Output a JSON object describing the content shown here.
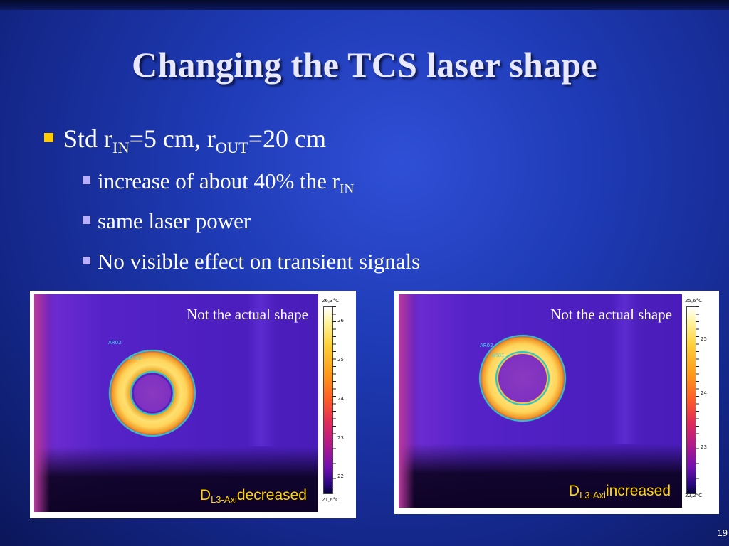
{
  "slide": {
    "title": "Changing the TCS laser shape",
    "bullet": {
      "prefix": "Std r",
      "sub1": "IN",
      "mid": "=5 cm, r",
      "sub2": "OUT",
      "suffix": "=20 cm"
    },
    "subbullets": [
      {
        "text": "increase of about 40% the r",
        "sub": "IN"
      },
      {
        "text": "same laser power"
      },
      {
        "text": "No visible effect on transient signals"
      }
    ],
    "page_number": "19"
  },
  "images": [
    {
      "caption": "Not the actual shape",
      "label_main": "D",
      "label_sub": "L3-Axi",
      "label_rest": "decreased",
      "roi_outer": "AR02",
      "roi_inner": "AR01",
      "scale_top": "26,3°C",
      "scale_bottom": "21,6°C",
      "scale_ticks": [
        "26",
        "25",
        "24",
        "23",
        "22"
      ]
    },
    {
      "caption": "Not the actual shape",
      "label_main": "D",
      "label_sub": "L3-Axi",
      "label_rest": "increased",
      "roi_outer": "AR02",
      "roi_inner": "AR01",
      "scale_top": "25,6°C",
      "scale_bottom": "22,2°C",
      "scale_ticks": [
        "25",
        "24",
        "23"
      ]
    }
  ],
  "colors": {
    "bullet_main": "#ffcc00",
    "bullet_sub": "#b8b0ff",
    "label": "#ffd400",
    "roi": "#20c8d8"
  }
}
